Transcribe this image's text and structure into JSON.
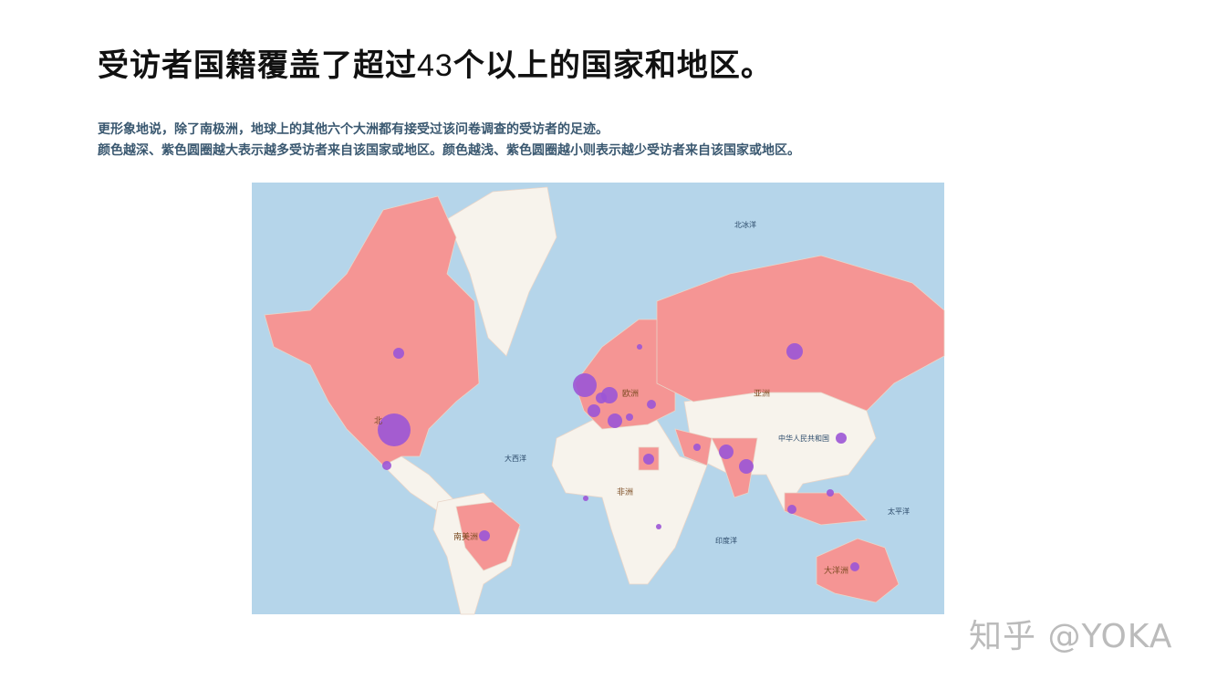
{
  "header": {
    "title": [
      "受访者国籍覆盖了超过",
      "43",
      "个以上的国家和地区。"
    ],
    "subtitle": [
      "更形象地说，除了南极洲，地球上的其他六个大洲都有接受过该问卷调查的受访者的足迹。",
      "颜色越深、紫色圆圈越大表示越多受访者来自该国家或地区。颜色越浅、紫色圆圈越小则表示越少受访者来自该国家或地区。"
    ]
  },
  "map": {
    "labels": [
      "北冰洋",
      "亚洲",
      "欧洲",
      "中华人民共和国",
      "大西洋",
      "非洲",
      "太平洋",
      "印度洋",
      "南美洲",
      "大洋洲",
      "北"
    ]
  },
  "watermark": "知乎 @YOKA"
}
